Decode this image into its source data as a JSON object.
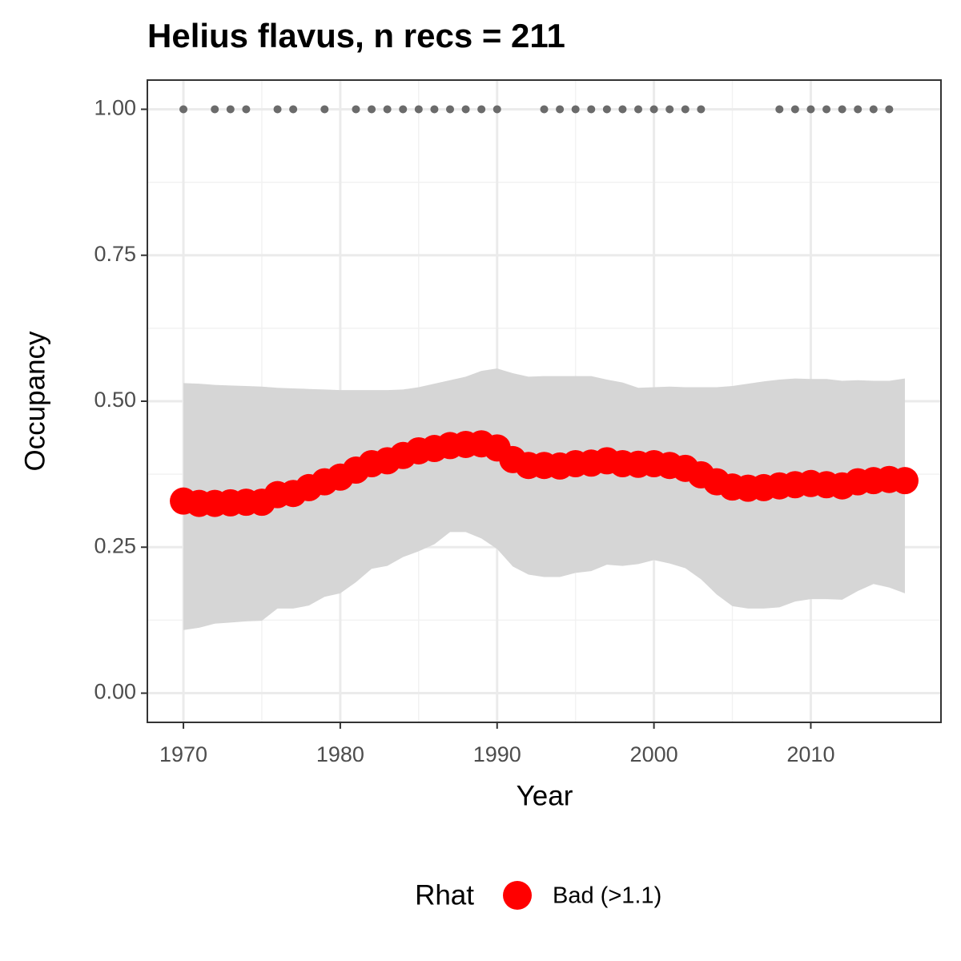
{
  "chart_data": {
    "type": "line",
    "title": "Helius flavus, n recs = 211",
    "xlabel": "Year",
    "ylabel": "Occupancy",
    "x": [
      1970,
      1971,
      1972,
      1973,
      1974,
      1975,
      1976,
      1977,
      1978,
      1979,
      1980,
      1981,
      1982,
      1983,
      1984,
      1985,
      1986,
      1987,
      1988,
      1989,
      1990,
      1991,
      1992,
      1993,
      1994,
      1995,
      1996,
      1997,
      1998,
      1999,
      2000,
      2001,
      2002,
      2003,
      2004,
      2005,
      2006,
      2007,
      2008,
      2009,
      2010,
      2011,
      2012,
      2013,
      2014,
      2015,
      2016
    ],
    "series": [
      {
        "name": "Bad (>1.1)",
        "color": "#ff0000",
        "values": [
          0.329,
          0.325,
          0.325,
          0.326,
          0.327,
          0.327,
          0.34,
          0.342,
          0.352,
          0.362,
          0.37,
          0.382,
          0.393,
          0.398,
          0.407,
          0.415,
          0.419,
          0.424,
          0.426,
          0.427,
          0.42,
          0.4,
          0.39,
          0.39,
          0.389,
          0.393,
          0.394,
          0.398,
          0.393,
          0.392,
          0.393,
          0.39,
          0.385,
          0.374,
          0.362,
          0.353,
          0.351,
          0.352,
          0.355,
          0.357,
          0.359,
          0.357,
          0.355,
          0.362,
          0.364,
          0.366,
          0.364
        ]
      }
    ],
    "band": {
      "color": "#d6d6d6",
      "upper": [
        0.531,
        0.53,
        0.528,
        0.527,
        0.526,
        0.525,
        0.523,
        0.522,
        0.521,
        0.52,
        0.519,
        0.519,
        0.519,
        0.519,
        0.52,
        0.524,
        0.53,
        0.536,
        0.542,
        0.552,
        0.556,
        0.548,
        0.542,
        0.543,
        0.543,
        0.543,
        0.543,
        0.537,
        0.532,
        0.523,
        0.524,
        0.525,
        0.524,
        0.524,
        0.524,
        0.526,
        0.53,
        0.534,
        0.537,
        0.539,
        0.538,
        0.538,
        0.535,
        0.536,
        0.535,
        0.535,
        0.539
      ],
      "lower": [
        0.108,
        0.112,
        0.119,
        0.121,
        0.123,
        0.124,
        0.145,
        0.145,
        0.15,
        0.165,
        0.171,
        0.19,
        0.213,
        0.218,
        0.233,
        0.243,
        0.255,
        0.276,
        0.276,
        0.265,
        0.247,
        0.217,
        0.203,
        0.199,
        0.199,
        0.206,
        0.209,
        0.22,
        0.218,
        0.221,
        0.228,
        0.222,
        0.214,
        0.195,
        0.169,
        0.149,
        0.145,
        0.145,
        0.147,
        0.157,
        0.161,
        0.161,
        0.16,
        0.175,
        0.187,
        0.181,
        0.171
      ]
    },
    "records": {
      "color": "#6b6b6b",
      "x": [
        1970,
        1972,
        1973,
        1974,
        1976,
        1977,
        1979,
        1981,
        1982,
        1983,
        1984,
        1985,
        1986,
        1987,
        1988,
        1989,
        1990,
        1993,
        1994,
        1995,
        1996,
        1997,
        1998,
        1999,
        2000,
        2001,
        2002,
        2003,
        2008,
        2009,
        2010,
        2011,
        2012,
        2013,
        2014,
        2015
      ],
      "values": [
        1,
        1,
        1,
        1,
        1,
        1,
        1,
        1,
        1,
        1,
        1,
        1,
        1,
        1,
        1,
        1,
        1,
        1,
        1,
        1,
        1,
        1,
        1,
        1,
        1,
        1,
        1,
        1,
        1,
        1,
        1,
        1,
        1,
        1,
        1,
        1
      ]
    },
    "xlim": [
      1967.7,
      2018.3
    ],
    "ylim": [
      -0.05,
      1.05
    ],
    "xticks": [
      1970,
      1980,
      1990,
      2000,
      2010
    ],
    "yticks": [
      {
        "value": 0,
        "label": "0.00"
      },
      {
        "value": 0.25,
        "label": "0.25"
      },
      {
        "value": 0.5,
        "label": "0.50"
      },
      {
        "value": 0.75,
        "label": "0.75"
      },
      {
        "value": 1,
        "label": "1.00"
      }
    ],
    "grid": true,
    "legend": {
      "title": "Rhat",
      "position": "bottom"
    }
  }
}
